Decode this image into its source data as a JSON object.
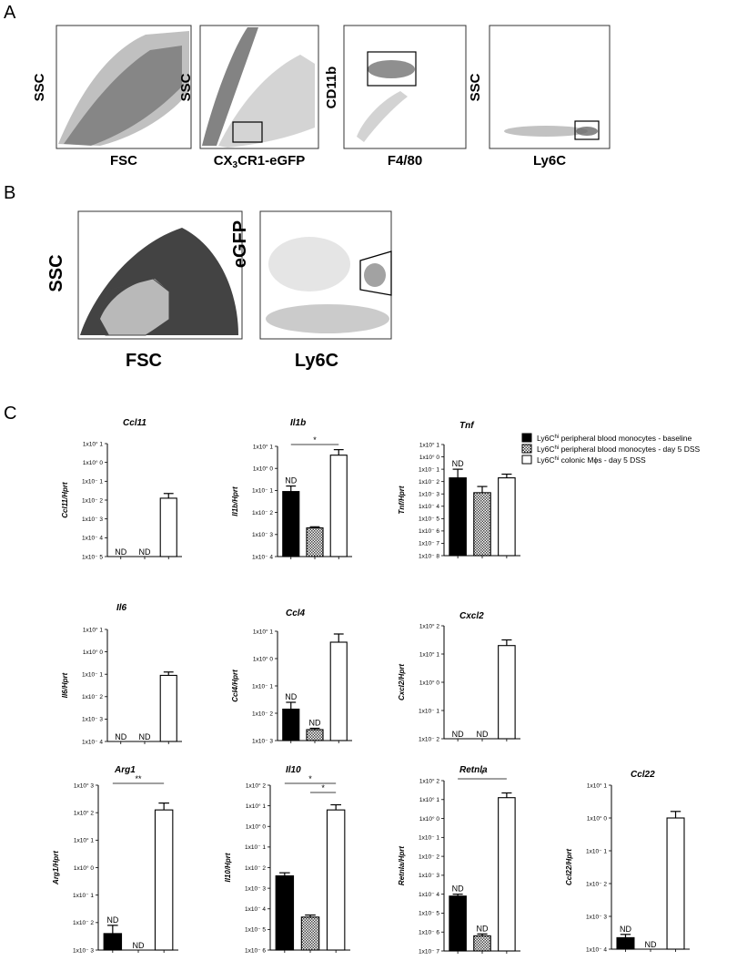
{
  "panels": {
    "A": "A",
    "B": "B",
    "C": "C"
  },
  "panelA": {
    "plots": [
      {
        "xlabel": "FSC",
        "ylabel": "SSC"
      },
      {
        "xlabel": "CX3CR1-eGFP",
        "ylabel": "SSC"
      },
      {
        "xlabel": "F4/80",
        "ylabel": "CD11b"
      },
      {
        "xlabel": "Ly6C",
        "ylabel": "SSC"
      }
    ]
  },
  "panelB": {
    "plots": [
      {
        "xlabel": "FSC",
        "ylabel": "SSC"
      },
      {
        "xlabel": "Ly6C",
        "ylabel": "eGFP"
      }
    ]
  },
  "legend": {
    "items": [
      {
        "text": "Ly6Chi peripheral blood monocytes - baseline",
        "fill": "#000000"
      },
      {
        "text": "Ly6Chi peripheral blood monocytes - day 5 DSS",
        "fill": "checker"
      },
      {
        "text": "Ly6Chi colonic Mϕs - day 5 DSS",
        "fill": "#ffffff"
      }
    ]
  },
  "nd_text": "ND",
  "chart_data": [
    {
      "type": "bar",
      "title": "Ccl11",
      "ylabel": "Ccl11/Hprt",
      "log": true,
      "yticks": [
        "1x10° 1",
        "1x10° 0",
        "1x10⁻ 1",
        "1x10⁻ 2",
        "1x10⁻ 3",
        "1x10⁻ 4",
        "1x10⁻ 5"
      ],
      "ylim_exp": [
        -5,
        1
      ],
      "values_exp": [
        null,
        null,
        -1.9
      ],
      "errors_exp": [
        0,
        0,
        0.25
      ],
      "nd": [
        true,
        true,
        false
      ],
      "sig": []
    },
    {
      "type": "bar",
      "title": "Il1b",
      "ylabel": "Il1b/Hprt",
      "log": true,
      "yticks": [
        "1x10° 1",
        "1x10° 0",
        "1x10⁻ 1",
        "1x10⁻ 2",
        "1x10⁻ 3",
        "1x10⁻ 4"
      ],
      "ylim_exp": [
        -4,
        1
      ],
      "values_exp": [
        -1.05,
        -2.7,
        0.6
      ],
      "errors_exp": [
        0.25,
        0.05,
        0.25
      ],
      "nd": [
        false,
        false,
        false
      ],
      "nd_above": [
        true,
        false,
        false
      ],
      "sig": [
        {
          "from": 0,
          "to": 2,
          "label": "*"
        }
      ]
    },
    {
      "type": "bar",
      "title": "Tnf",
      "ylabel": "Tnf/Hprt",
      "log": true,
      "yticks": [
        "1x10° 1",
        "1x10° 0",
        "1x10⁻ 1",
        "1x10⁻ 2",
        "1x10⁻ 3",
        "1x10⁻ 4",
        "1x10⁻ 5",
        "1x10⁻ 6",
        "1x10⁻ 7",
        "1x10⁻ 8"
      ],
      "ylim_exp": [
        -8,
        1
      ],
      "values_exp": [
        -1.7,
        -2.9,
        -1.7
      ],
      "errors_exp": [
        0.7,
        0.5,
        0.3
      ],
      "nd": [
        false,
        false,
        false
      ],
      "nd_above": [
        true,
        false,
        false
      ],
      "sig": []
    },
    {
      "type": "bar",
      "title": "Il6",
      "ylabel": "Il6/Hprt",
      "log": true,
      "yticks": [
        "1x10° 1",
        "1x10° 0",
        "1x10⁻ 1",
        "1x10⁻ 2",
        "1x10⁻ 3",
        "1x10⁻ 4"
      ],
      "ylim_exp": [
        -4,
        1
      ],
      "values_exp": [
        null,
        null,
        -1.05
      ],
      "errors_exp": [
        0,
        0,
        0.15
      ],
      "nd": [
        true,
        true,
        false
      ],
      "sig": []
    },
    {
      "type": "bar",
      "title": "Ccl4",
      "ylabel": "Ccl4/Hprt",
      "log": true,
      "yticks": [
        "1x10° 1",
        "1x10° 0",
        "1x10⁻ 1",
        "1x10⁻ 2",
        "1x10⁻ 3"
      ],
      "ylim_exp": [
        -3,
        1
      ],
      "values_exp": [
        -1.85,
        -2.6,
        0.6
      ],
      "errors_exp": [
        0.25,
        0.05,
        0.3
      ],
      "nd": [
        false,
        false,
        false
      ],
      "nd_above": [
        true,
        true,
        false
      ],
      "sig": []
    },
    {
      "type": "bar",
      "title": "Cxcl2",
      "ylabel": "Cxcl2/Hprt",
      "log": true,
      "yticks": [
        "1x10° 2",
        "1x10° 1",
        "1x10° 0",
        "1x10⁻ 1",
        "1x10⁻ 2"
      ],
      "ylim_exp": [
        -2,
        2
      ],
      "values_exp": [
        null,
        null,
        1.3
      ],
      "errors_exp": [
        0,
        0,
        0.2
      ],
      "nd": [
        true,
        true,
        false
      ],
      "sig": []
    },
    {
      "type": "bar",
      "title": "Arg1",
      "ylabel": "Arg1/Hprt",
      "log": true,
      "yticks": [
        "1x10° 3",
        "1x10° 2",
        "1x10° 1",
        "1x10° 0",
        "1x10⁻ 1",
        "1x10⁻ 2",
        "1x10⁻ 3"
      ],
      "ylim_exp": [
        -3,
        3
      ],
      "values_exp": [
        -2.4,
        null,
        2.1
      ],
      "errors_exp": [
        0.3,
        0,
        0.25
      ],
      "nd": [
        false,
        true,
        false
      ],
      "nd_above": [
        true,
        false,
        false
      ],
      "sig": [
        {
          "from": 0,
          "to": 2,
          "label": "**"
        }
      ]
    },
    {
      "type": "bar",
      "title": "Il10",
      "ylabel": "Il10/Hprt",
      "log": true,
      "yticks": [
        "1x10° 2",
        "1x10° 1",
        "1x10° 0",
        "1x10⁻ 1",
        "1x10⁻ 2",
        "1x10⁻ 3",
        "1x10⁻ 4",
        "1x10⁻ 5",
        "1x10⁻ 6"
      ],
      "ylim_exp": [
        -6,
        2
      ],
      "values_exp": [
        -2.4,
        -4.4,
        0.8
      ],
      "errors_exp": [
        0.15,
        0.1,
        0.25
      ],
      "nd": [
        false,
        false,
        false
      ],
      "sig": [
        {
          "from": 0,
          "to": 2,
          "label": "*"
        },
        {
          "from": 1,
          "to": 2,
          "label": "*"
        }
      ]
    },
    {
      "type": "bar",
      "title": "Retnla",
      "ylabel": "Retnla/Hprt",
      "log": true,
      "yticks": [
        "1x10° 2",
        "1x10° 1",
        "1x10° 0",
        "1x10⁻ 1",
        "1x10⁻ 2",
        "1x10⁻ 3",
        "1x10⁻ 4",
        "1x10⁻ 5",
        "1x10⁻ 6",
        "1x10⁻ 7"
      ],
      "ylim_exp": [
        -7,
        2
      ],
      "values_exp": [
        -4.1,
        -6.2,
        1.1
      ],
      "errors_exp": [
        0.1,
        0.1,
        0.25
      ],
      "nd": [
        false,
        false,
        false
      ],
      "nd_above": [
        true,
        true,
        false
      ],
      "sig": [
        {
          "from": 0,
          "to": 2,
          "label": "*"
        }
      ]
    },
    {
      "type": "bar",
      "title": "Ccl22",
      "ylabel": "Ccl22/Hprt",
      "log": true,
      "yticks": [
        "1x10° 1",
        "1x10° 0",
        "1x10⁻ 1",
        "1x10⁻ 2",
        "1x10⁻ 3",
        "1x10⁻ 4"
      ],
      "ylim_exp": [
        -4,
        1
      ],
      "values_exp": [
        -3.65,
        null,
        0.0
      ],
      "errors_exp": [
        0.1,
        0,
        0.2
      ],
      "nd": [
        false,
        true,
        false
      ],
      "nd_above": [
        true,
        false,
        false
      ],
      "sig": []
    }
  ]
}
